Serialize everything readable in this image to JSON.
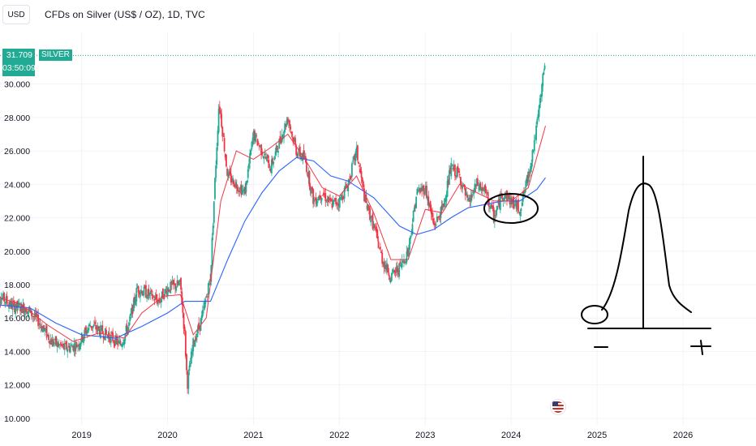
{
  "header": {
    "currency": "USD",
    "title": "CFDs on Silver (US$ / OZ), 1D, TVC"
  },
  "price_marker": {
    "price": "31.709",
    "countdown": "03:50:09",
    "symbol": "SILVER"
  },
  "colors": {
    "up": "#22ab94",
    "down": "#f23645",
    "ma_fast": "#f23645",
    "ma_slow": "#2962ff",
    "grid": "#f0f3fa",
    "annotation": "#000000",
    "price_line": "#22ab94"
  },
  "icons": {
    "event_marker": "us-flag-icon"
  },
  "chart_data": {
    "type": "candlestick",
    "title": "CFDs on Silver (US$ / OZ), 1D, TVC",
    "xlabel": "",
    "ylabel": "",
    "xlim": [
      2018.05,
      2026.85
    ],
    "ylim": [
      9.8,
      32.7
    ],
    "y_tick_labels": [
      "10.000",
      "12.000",
      "14.000",
      "16.000",
      "18.000",
      "20.000",
      "22.000",
      "24.000",
      "26.000",
      "28.000",
      "30.000"
    ],
    "y_tick_values": [
      10,
      12,
      14,
      16,
      18,
      20,
      22,
      24,
      26,
      28,
      30
    ],
    "x_tick_labels": [
      "2019",
      "2020",
      "2021",
      "2022",
      "2023",
      "2024",
      "2025",
      "2026"
    ],
    "x_tick_values": [
      2019,
      2020,
      2021,
      2022,
      2023,
      2024,
      2025,
      2026
    ],
    "grid": true,
    "last_price": 31.709,
    "price_path": [
      [
        2018.0,
        17.5
      ],
      [
        2018.2,
        16.7
      ],
      [
        2018.35,
        16.6
      ],
      [
        2018.5,
        15.8
      ],
      [
        2018.65,
        14.6
      ],
      [
        2018.8,
        14.2
      ],
      [
        2018.95,
        14.4
      ],
      [
        2019.1,
        15.6
      ],
      [
        2019.2,
        15.3
      ],
      [
        2019.35,
        14.8
      ],
      [
        2019.45,
        14.4
      ],
      [
        2019.55,
        15.6
      ],
      [
        2019.65,
        17.8
      ],
      [
        2019.75,
        17.5
      ],
      [
        2019.9,
        17.0
      ],
      [
        2020.0,
        17.8
      ],
      [
        2020.15,
        18.0
      ],
      [
        2020.2,
        15.0
      ],
      [
        2020.23,
        12.0
      ],
      [
        2020.3,
        14.5
      ],
      [
        2020.4,
        16.0
      ],
      [
        2020.5,
        18.5
      ],
      [
        2020.55,
        24.0
      ],
      [
        2020.6,
        29.0
      ],
      [
        2020.7,
        24.5
      ],
      [
        2020.8,
        24.0
      ],
      [
        2020.9,
        23.5
      ],
      [
        2021.0,
        27.0
      ],
      [
        2021.1,
        26.0
      ],
      [
        2021.2,
        25.0
      ],
      [
        2021.3,
        26.5
      ],
      [
        2021.4,
        28.0
      ],
      [
        2021.5,
        26.0
      ],
      [
        2021.6,
        25.5
      ],
      [
        2021.7,
        23.0
      ],
      [
        2021.8,
        23.5
      ],
      [
        2021.9,
        22.8
      ],
      [
        2022.0,
        23.0
      ],
      [
        2022.1,
        24.0
      ],
      [
        2022.2,
        26.0
      ],
      [
        2022.3,
        23.0
      ],
      [
        2022.4,
        21.5
      ],
      [
        2022.5,
        19.5
      ],
      [
        2022.6,
        18.5
      ],
      [
        2022.7,
        19.0
      ],
      [
        2022.8,
        20.0
      ],
      [
        2022.9,
        23.5
      ],
      [
        2023.0,
        23.8
      ],
      [
        2023.1,
        21.5
      ],
      [
        2023.2,
        22.5
      ],
      [
        2023.3,
        25.0
      ],
      [
        2023.4,
        24.5
      ],
      [
        2023.5,
        22.8
      ],
      [
        2023.6,
        24.0
      ],
      [
        2023.7,
        23.5
      ],
      [
        2023.8,
        22.0
      ],
      [
        2023.9,
        23.5
      ],
      [
        2024.0,
        23.0
      ],
      [
        2024.1,
        22.5
      ],
      [
        2024.2,
        24.5
      ],
      [
        2024.3,
        27.5
      ],
      [
        2024.35,
        29.5
      ],
      [
        2024.4,
        31.7
      ]
    ],
    "moving_averages": [
      {
        "color": "#f23645",
        "values": [
          [
            2018.0,
            17.3
          ],
          [
            2018.3,
            16.8
          ],
          [
            2018.6,
            15.6
          ],
          [
            2018.9,
            14.6
          ],
          [
            2019.2,
            15.1
          ],
          [
            2019.5,
            14.8
          ],
          [
            2019.7,
            16.3
          ],
          [
            2019.95,
            17.3
          ],
          [
            2020.15,
            17.4
          ],
          [
            2020.3,
            15.0
          ],
          [
            2020.45,
            16.0
          ],
          [
            2020.62,
            23.0
          ],
          [
            2020.8,
            26.0
          ],
          [
            2021.0,
            25.5
          ],
          [
            2021.2,
            26.2
          ],
          [
            2021.4,
            27.0
          ],
          [
            2021.6,
            25.5
          ],
          [
            2021.8,
            23.8
          ],
          [
            2022.0,
            23.3
          ],
          [
            2022.2,
            24.5
          ],
          [
            2022.4,
            22.3
          ],
          [
            2022.6,
            19.5
          ],
          [
            2022.8,
            19.5
          ],
          [
            2023.0,
            22.5
          ],
          [
            2023.2,
            22.3
          ],
          [
            2023.4,
            24.0
          ],
          [
            2023.6,
            23.5
          ],
          [
            2023.8,
            23.0
          ],
          [
            2024.0,
            23.0
          ],
          [
            2024.2,
            23.8
          ],
          [
            2024.4,
            27.5
          ]
        ]
      },
      {
        "color": "#2962ff",
        "values": [
          [
            2018.0,
            16.8
          ],
          [
            2018.4,
            16.6
          ],
          [
            2018.7,
            15.7
          ],
          [
            2019.0,
            15.0
          ],
          [
            2019.4,
            14.8
          ],
          [
            2019.7,
            15.5
          ],
          [
            2020.0,
            16.3
          ],
          [
            2020.2,
            17.0
          ],
          [
            2020.5,
            17.0
          ],
          [
            2020.7,
            19.5
          ],
          [
            2020.9,
            21.8
          ],
          [
            2021.1,
            23.5
          ],
          [
            2021.3,
            24.8
          ],
          [
            2021.5,
            25.6
          ],
          [
            2021.7,
            25.4
          ],
          [
            2021.9,
            24.5
          ],
          [
            2022.1,
            24.2
          ],
          [
            2022.4,
            23.2
          ],
          [
            2022.7,
            21.5
          ],
          [
            2022.9,
            21.0
          ],
          [
            2023.1,
            21.3
          ],
          [
            2023.3,
            22.0
          ],
          [
            2023.5,
            22.6
          ],
          [
            2023.7,
            22.8
          ],
          [
            2023.9,
            23.0
          ],
          [
            2024.1,
            23.0
          ],
          [
            2024.3,
            23.7
          ],
          [
            2024.4,
            24.4
          ]
        ]
      }
    ],
    "annotations": [
      "circle around 2023.5–2024.2 consolidation near 22–23",
      "hand-drawn bell-shaped curve with vertical line, baseline, small circle, and + / − marks"
    ]
  }
}
